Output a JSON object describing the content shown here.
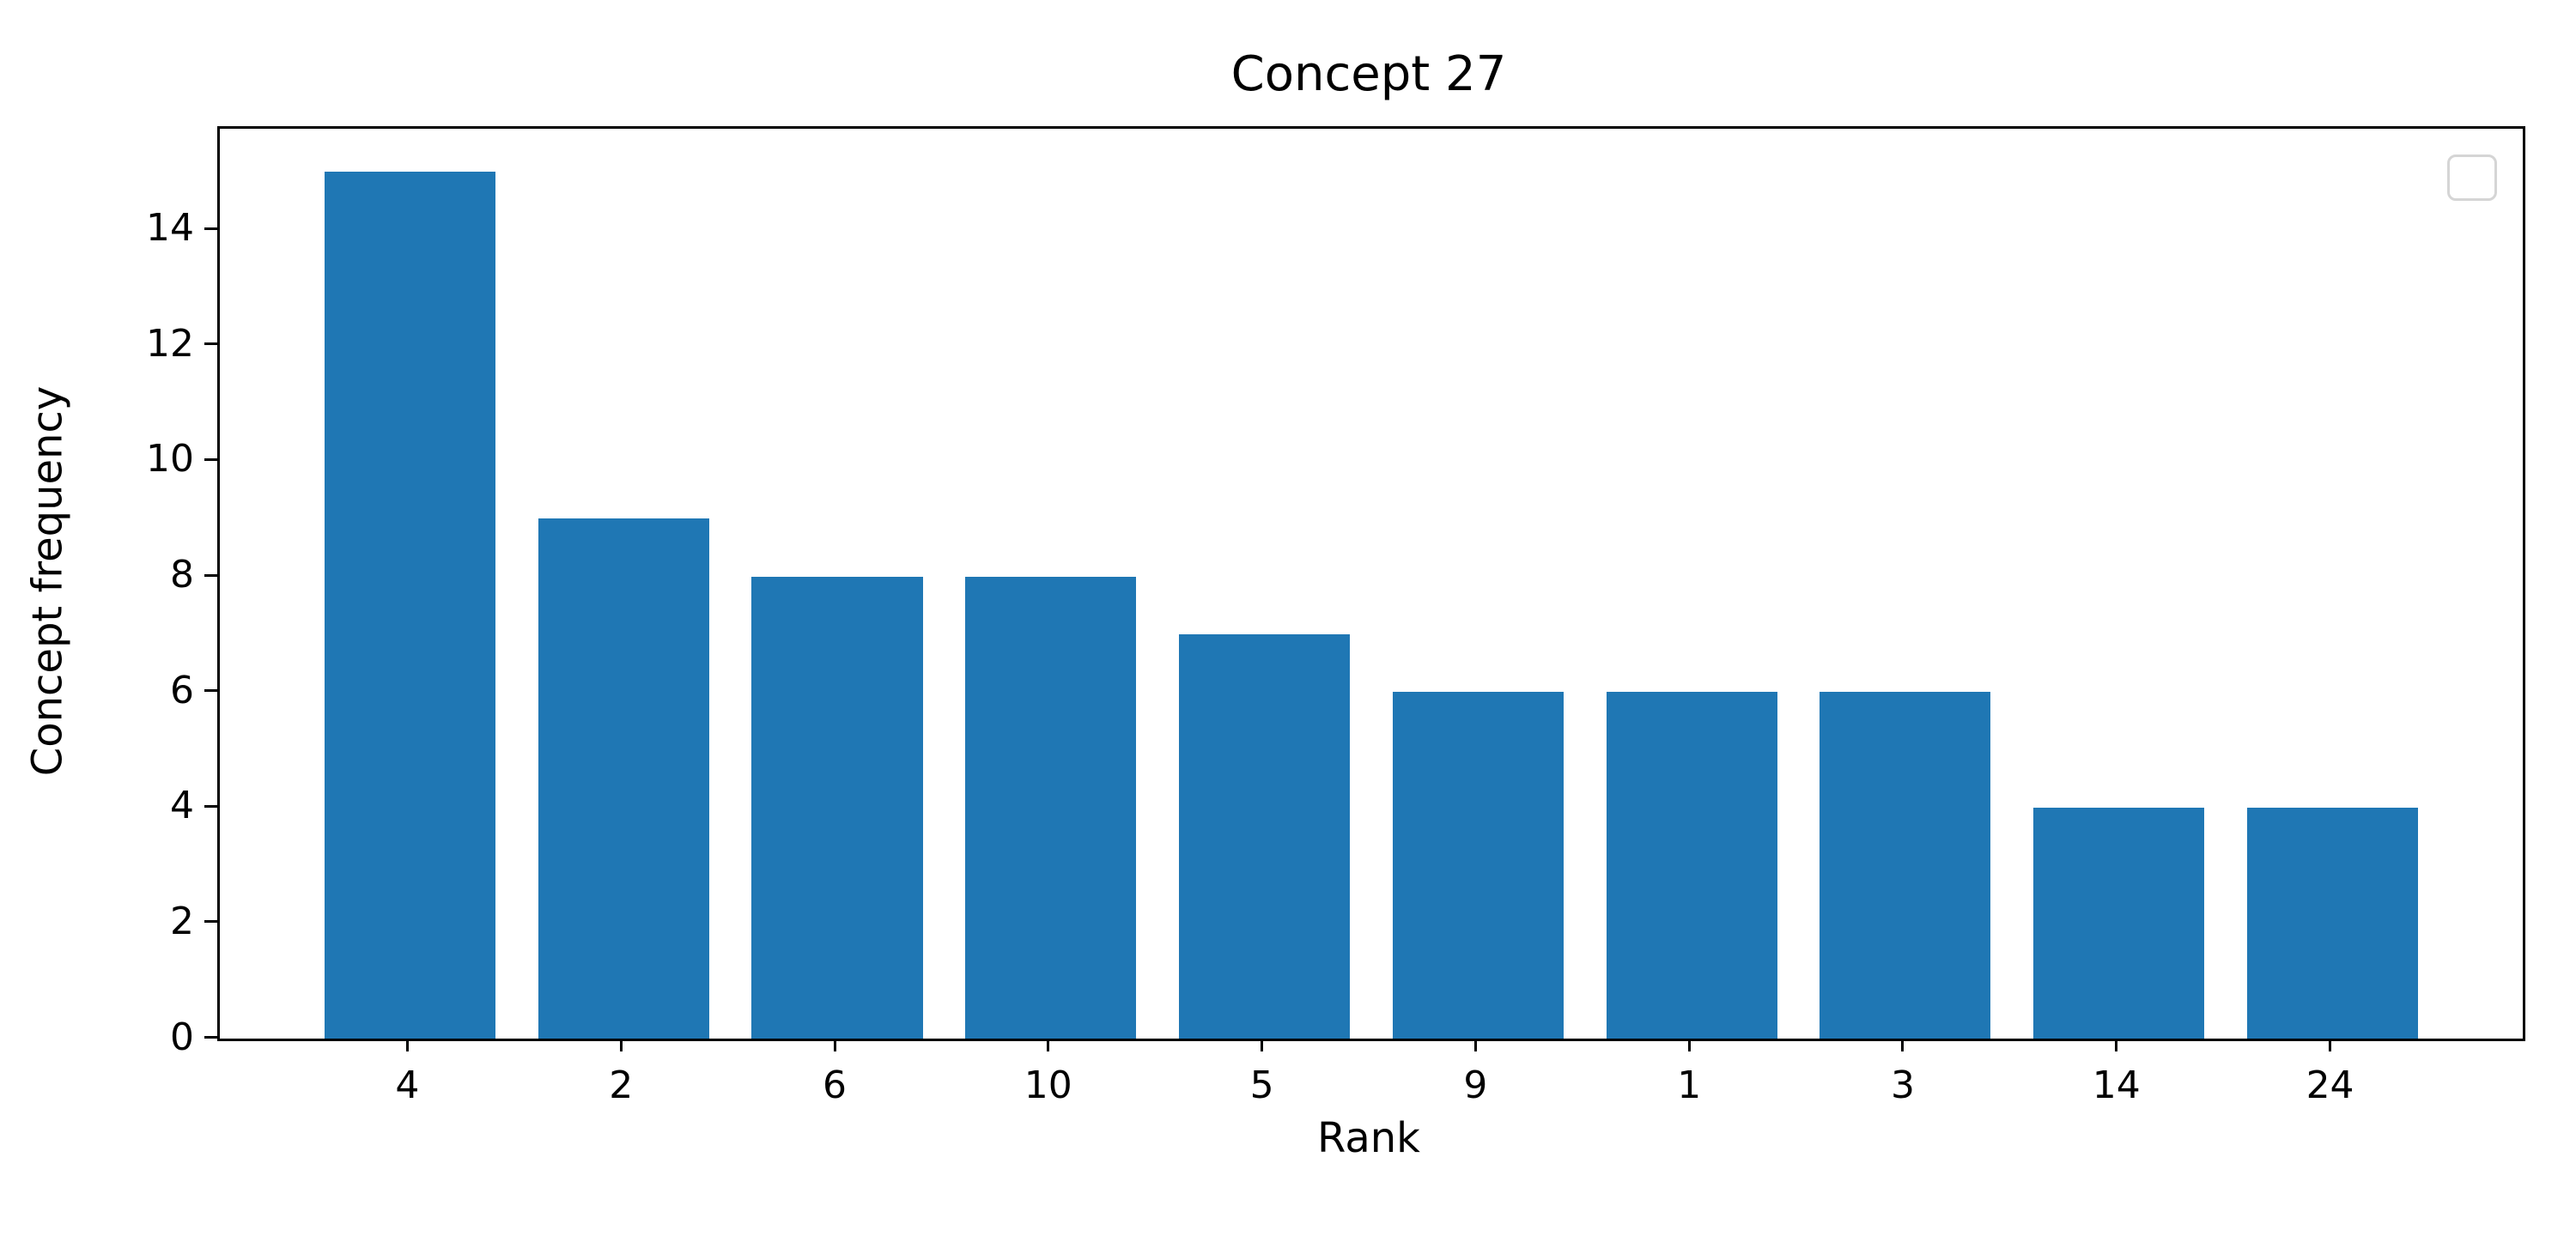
{
  "chart_data": {
    "type": "bar",
    "title": "Concept 27",
    "xlabel": "Rank",
    "ylabel": "Concept frequency",
    "categories": [
      "4",
      "2",
      "6",
      "10",
      "5",
      "9",
      "1",
      "3",
      "14",
      "24"
    ],
    "values": [
      15,
      9,
      8,
      8,
      7,
      6,
      6,
      6,
      4,
      4
    ],
    "yticks": [
      0,
      2,
      4,
      6,
      8,
      10,
      12,
      14
    ],
    "ylim": [
      0,
      15.75
    ],
    "xlim": [
      -0.89,
      9.89
    ],
    "bar_width": 0.8,
    "grid": false,
    "legend": {
      "visible": true,
      "entries": [],
      "position": "upper right"
    }
  },
  "colors": {
    "bar": "#1f77b4",
    "text": "#000000",
    "background": "#ffffff",
    "legend_border": "#d5d5d5",
    "axis": "#000000"
  }
}
